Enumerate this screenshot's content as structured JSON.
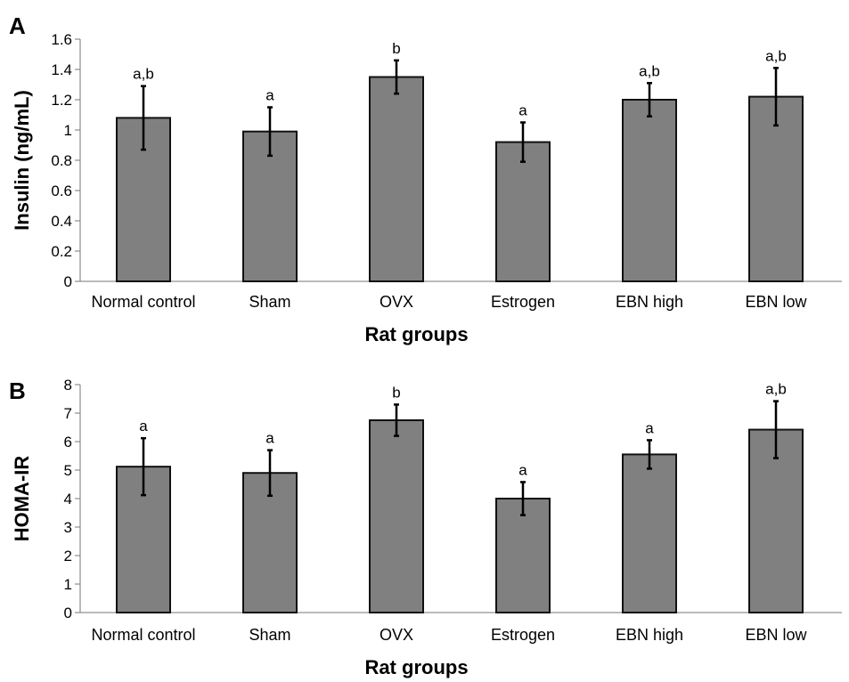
{
  "chart_data": [
    {
      "type": "bar",
      "panel_label": "A",
      "categories": [
        "Normal control",
        "Sham",
        "OVX",
        "Estrogen",
        "EBN high",
        "EBN low"
      ],
      "series": [
        {
          "values": [
            1.08,
            0.99,
            1.35,
            0.92,
            1.2,
            1.22
          ],
          "error": [
            0.21,
            0.16,
            0.11,
            0.13,
            0.11,
            0.19
          ],
          "annotations": [
            "a,b",
            "a",
            "b",
            "a",
            "a,b",
            "a,b"
          ]
        }
      ],
      "xlabel": "Rat groups",
      "ylabel": "Insulin (ng/mL)",
      "ylim": [
        0,
        1.6
      ],
      "yticks": [
        "0",
        "0.2",
        "0.4",
        "0.6",
        "0.8",
        "1",
        "1.2",
        "1.4",
        "1.6"
      ],
      "grid": false,
      "bar_color": "#808080"
    },
    {
      "type": "bar",
      "panel_label": "B",
      "categories": [
        "Normal control",
        "Sham",
        "OVX",
        "Estrogen",
        "EBN high",
        "EBN low"
      ],
      "series": [
        {
          "values": [
            5.12,
            4.9,
            6.75,
            4.0,
            5.55,
            6.42
          ],
          "error": [
            1.0,
            0.8,
            0.55,
            0.58,
            0.5,
            1.0
          ],
          "annotations": [
            "a",
            "a",
            "b",
            "a",
            "a",
            "a,b"
          ]
        }
      ],
      "xlabel": "Rat groups",
      "ylabel": "HOMA-IR",
      "ylim": [
        0,
        8
      ],
      "yticks": [
        "0",
        "1",
        "2",
        "3",
        "4",
        "5",
        "6",
        "7",
        "8"
      ],
      "grid": false,
      "bar_color": "#808080"
    }
  ]
}
